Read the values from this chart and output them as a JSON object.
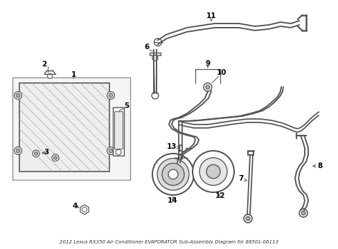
{
  "title": "2012 Lexus RX350 Air Conditioner EVAPORATOR Sub-Assembly Diagram for 88501-06113",
  "bg_color": "#ffffff",
  "line_color": "#555555",
  "text_color": "#000000",
  "fig_width": 4.89,
  "fig_height": 3.6,
  "dpi": 100
}
